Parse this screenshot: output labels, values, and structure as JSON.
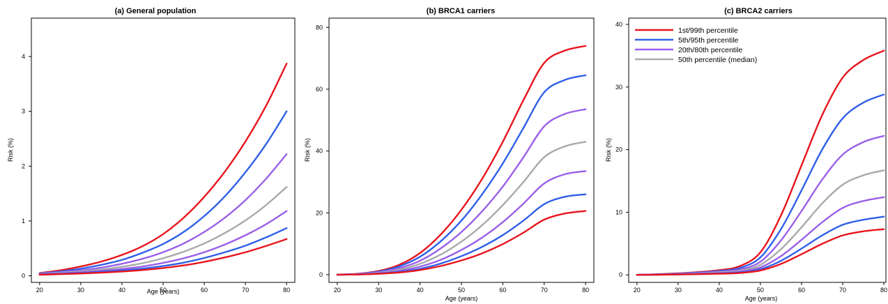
{
  "colors": {
    "p1_99": "#e8141c",
    "p5_95": "#2f5fe8",
    "p20_80": "#9a5fe8",
    "p50": "#a9a9a9"
  },
  "legend": {
    "placement": "top-left of panel (c)",
    "entries": [
      {
        "label": "1st/99th percentile",
        "color_key": "p1_99"
      },
      {
        "label": "5th/95th percentile",
        "color_key": "p5_95"
      },
      {
        "label": "20th/80th percentile",
        "color_key": "p20_80"
      },
      {
        "label": "50th percentile (median)",
        "color_key": "p50"
      }
    ]
  },
  "chart_data": [
    {
      "type": "line",
      "title": "(a) General population",
      "xlabel": "Age (years)",
      "ylabel": "Risk (%)",
      "xlim": [
        18,
        82
      ],
      "ylim": [
        -0.12,
        4.7
      ],
      "xticks": [
        20,
        30,
        40,
        50,
        60,
        70,
        80
      ],
      "yticks": [
        0,
        1,
        2,
        3,
        4
      ],
      "x": [
        20,
        25,
        30,
        35,
        40,
        45,
        50,
        55,
        60,
        65,
        70,
        75,
        80
      ],
      "series": [
        {
          "name": "1st/99th percentile",
          "color_key": "p1_99",
          "values": [
            0.05,
            0.1,
            0.17,
            0.26,
            0.38,
            0.54,
            0.76,
            1.06,
            1.44,
            1.9,
            2.45,
            3.1,
            3.87
          ]
        },
        {
          "name": "5th/95th percentile",
          "color_key": "p5_95",
          "values": [
            0.045,
            0.08,
            0.13,
            0.2,
            0.29,
            0.42,
            0.58,
            0.8,
            1.09,
            1.45,
            1.89,
            2.4,
            3.0
          ]
        },
        {
          "name": "20th/80th percentile",
          "color_key": "p20_80",
          "values": [
            0.04,
            0.065,
            0.1,
            0.15,
            0.22,
            0.31,
            0.43,
            0.59,
            0.8,
            1.06,
            1.38,
            1.77,
            2.22
          ]
        },
        {
          "name": "50th percentile (median)",
          "color_key": "p50",
          "values": [
            0.035,
            0.055,
            0.08,
            0.115,
            0.165,
            0.23,
            0.32,
            0.44,
            0.59,
            0.78,
            1.01,
            1.29,
            1.62
          ]
        },
        {
          "name": "20th/80th percentile",
          "color_key": "p20_80",
          "values": [
            0.03,
            0.045,
            0.065,
            0.09,
            0.125,
            0.17,
            0.235,
            0.32,
            0.43,
            0.57,
            0.74,
            0.94,
            1.18
          ]
        },
        {
          "name": "5th/95th percentile",
          "color_key": "p5_95",
          "values": [
            0.025,
            0.037,
            0.052,
            0.072,
            0.098,
            0.132,
            0.178,
            0.24,
            0.325,
            0.43,
            0.55,
            0.7,
            0.87
          ]
        },
        {
          "name": "1st/99th percentile",
          "color_key": "p1_99",
          "values": [
            0.02,
            0.03,
            0.042,
            0.057,
            0.078,
            0.105,
            0.142,
            0.19,
            0.255,
            0.335,
            0.43,
            0.545,
            0.67
          ]
        }
      ]
    },
    {
      "type": "line",
      "title": "(b) BRCA1 carriers",
      "xlabel": "Age (years)",
      "ylabel": "Risk (%)",
      "xlim": [
        18,
        82
      ],
      "ylim": [
        -2.5,
        83
      ],
      "xticks": [
        20,
        30,
        40,
        50,
        60,
        70,
        80
      ],
      "yticks": [
        0,
        20,
        40,
        60,
        80
      ],
      "x": [
        20,
        25,
        30,
        35,
        40,
        45,
        50,
        55,
        60,
        65,
        70,
        75,
        80
      ],
      "series": [
        {
          "name": "1st/99th percentile",
          "color_key": "p1_99",
          "values": [
            0,
            0.3,
            1.2,
            3.2,
            7.0,
            13.0,
            21.0,
            31.0,
            43.0,
            56.5,
            68.5,
            72.5,
            74.0
          ]
        },
        {
          "name": "5th/95th percentile",
          "color_key": "p5_95",
          "values": [
            0,
            0.25,
            1.0,
            2.7,
            5.8,
            10.8,
            17.5,
            26.0,
            36.0,
            47.5,
            59.0,
            63.0,
            64.5
          ]
        },
        {
          "name": "20th/80th percentile",
          "color_key": "p20_80",
          "values": [
            0,
            0.2,
            0.8,
            2.1,
            4.5,
            8.5,
            13.8,
            20.5,
            28.5,
            38.0,
            48.0,
            52.0,
            53.5
          ]
        },
        {
          "name": "50th percentile (median)",
          "color_key": "p50",
          "values": [
            0,
            0.15,
            0.6,
            1.6,
            3.5,
            6.5,
            10.7,
            16.0,
            22.5,
            30.0,
            38.0,
            41.5,
            43.0
          ]
        },
        {
          "name": "20th/80th percentile",
          "color_key": "p20_80",
          "values": [
            0,
            0.1,
            0.45,
            1.2,
            2.6,
            4.8,
            8.0,
            12.0,
            17.0,
            23.0,
            29.5,
            32.5,
            33.5
          ]
        },
        {
          "name": "5th/95th percentile",
          "color_key": "p5_95",
          "values": [
            0,
            0.08,
            0.35,
            0.9,
            1.9,
            3.6,
            6.0,
            9.0,
            12.8,
            17.5,
            22.8,
            25.2,
            26.0
          ]
        },
        {
          "name": "1st/99th percentile",
          "color_key": "p1_99",
          "values": [
            0,
            0.06,
            0.28,
            0.7,
            1.5,
            2.8,
            4.6,
            6.9,
            9.9,
            13.6,
            17.8,
            19.8,
            20.6
          ]
        }
      ]
    },
    {
      "type": "line",
      "title": "(c) BRCA2 carriers",
      "xlabel": "Age (years)",
      "ylabel": "Risk (%)",
      "xlim": [
        18,
        80.5
      ],
      "ylim": [
        -1.2,
        41
      ],
      "xticks": [
        20,
        30,
        40,
        50,
        60,
        70,
        80
      ],
      "yticks": [
        0,
        10,
        20,
        30,
        40
      ],
      "x": [
        20,
        25,
        30,
        35,
        40,
        45,
        50,
        55,
        60,
        65,
        70,
        75,
        80
      ],
      "series": [
        {
          "name": "1st/99th percentile",
          "color_key": "p1_99",
          "values": [
            0,
            0.1,
            0.25,
            0.45,
            0.75,
            1.4,
            3.6,
            9.5,
            17.5,
            25.5,
            31.5,
            34.3,
            35.8
          ]
        },
        {
          "name": "5th/95th percentile",
          "color_key": "p5_95",
          "values": [
            0,
            0.08,
            0.2,
            0.38,
            0.62,
            1.1,
            2.8,
            7.3,
            13.5,
            20.0,
            25.0,
            27.5,
            28.8
          ]
        },
        {
          "name": "20th/80th percentile",
          "color_key": "p20_80",
          "values": [
            0,
            0.06,
            0.16,
            0.3,
            0.5,
            0.85,
            2.1,
            5.5,
            10.2,
            15.2,
            19.2,
            21.2,
            22.2
          ]
        },
        {
          "name": "50th percentile (median)",
          "color_key": "p50",
          "values": [
            0,
            0.05,
            0.13,
            0.24,
            0.4,
            0.65,
            1.6,
            4.1,
            7.6,
            11.4,
            14.4,
            15.9,
            16.7
          ]
        },
        {
          "name": "20th/80th percentile",
          "color_key": "p20_80",
          "values": [
            0,
            0.04,
            0.1,
            0.18,
            0.3,
            0.5,
            1.2,
            3.0,
            5.6,
            8.4,
            10.7,
            11.8,
            12.4
          ]
        },
        {
          "name": "5th/95th percentile",
          "color_key": "p5_95",
          "values": [
            0,
            0.03,
            0.08,
            0.14,
            0.23,
            0.38,
            0.9,
            2.25,
            4.2,
            6.3,
            8.0,
            8.8,
            9.3
          ]
        },
        {
          "name": "1st/99th percentile",
          "color_key": "p1_99",
          "values": [
            0,
            0.025,
            0.065,
            0.11,
            0.18,
            0.3,
            0.7,
            1.75,
            3.3,
            4.95,
            6.3,
            6.95,
            7.3
          ]
        }
      ]
    }
  ]
}
